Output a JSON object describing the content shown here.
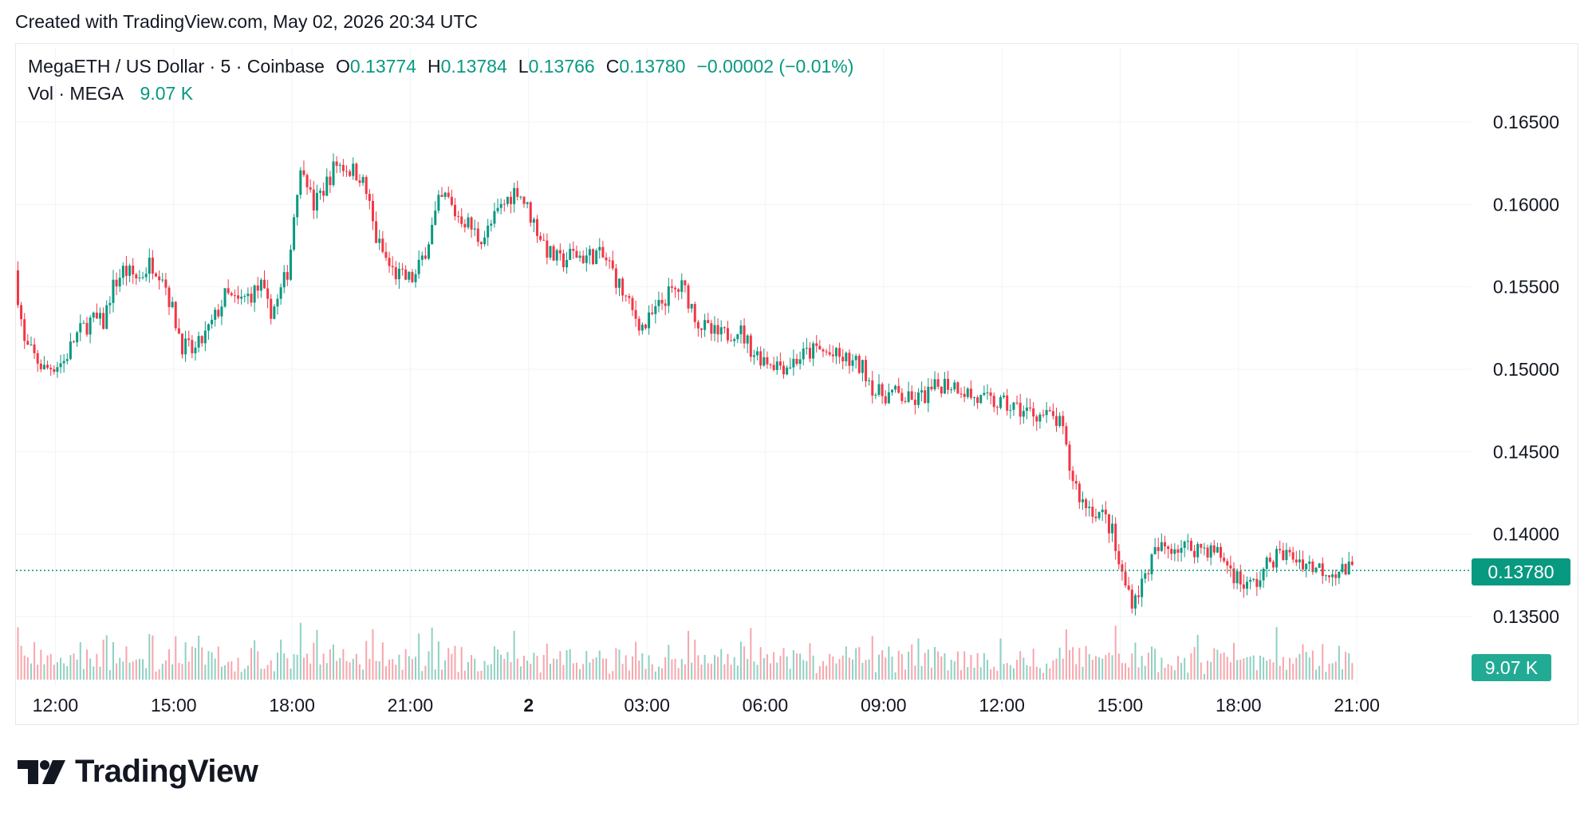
{
  "header": {
    "credit": "Created with TradingView.com, May 02, 2026 20:34 UTC"
  },
  "legend": {
    "symbol": "MegaETH / US Dollar · 5 · Coinbase",
    "open_label": "O",
    "open": "0.13774",
    "high_label": "H",
    "high": "0.13784",
    "low_label": "L",
    "low": "0.13766",
    "close_label": "C",
    "close": "0.13780",
    "change": "−0.00002 (−0.01%)",
    "vol_label": "Vol · MEGA",
    "vol_value": "9.07 K"
  },
  "price_axis_tag": "0.13780",
  "volume_axis_tag": "9.07 K",
  "brand": {
    "name": "TradingView",
    "logo": "tradingview-logo"
  },
  "colors": {
    "up": "#089981",
    "down": "#f23645",
    "grid": "#f0f3fa",
    "text": "#131722"
  },
  "chart_data": {
    "type": "candlestick",
    "interval": "5",
    "exchange": "Coinbase",
    "y_ticks": [
      "0.13500",
      "0.14000",
      "0.14500",
      "0.15000",
      "0.15500",
      "0.16000",
      "0.16500"
    ],
    "ylim": [
      0.1317,
      0.1678
    ],
    "x_ticks": [
      "12:00",
      "15:00",
      "18:00",
      "21:00",
      "2",
      "03:00",
      "06:00",
      "09:00",
      "12:00",
      "15:00",
      "18:00",
      "21:00"
    ],
    "x_tick_hours": [
      12,
      15,
      18,
      21,
      24,
      27,
      30,
      33,
      36,
      39,
      42,
      45
    ],
    "xlim_hours": [
      11.0,
      47.0
    ],
    "last_price": 0.1378,
    "price_path_hours": [
      11.05,
      11.3,
      11.8,
      12.3,
      12.6,
      13.0,
      13.3,
      13.5,
      13.8,
      14.2,
      14.5,
      14.8,
      15.0,
      15.3,
      15.6,
      16.0,
      16.4,
      16.7,
      17.0,
      17.3,
      17.5,
      17.7,
      18.0,
      18.2,
      18.4,
      18.6,
      18.9,
      19.2,
      19.5,
      19.8,
      20.0,
      20.2,
      20.4,
      20.6,
      20.9,
      21.2,
      21.5,
      21.8,
      22.0,
      22.2,
      22.5,
      22.8,
      23.0,
      23.3,
      23.6,
      23.8,
      24.0,
      24.3,
      24.6,
      24.9,
      25.2,
      25.5,
      25.8,
      26.1,
      26.4,
      26.7,
      27.0,
      27.3,
      27.6,
      28.0,
      28.4,
      28.7,
      29.0,
      29.4,
      29.8,
      30.2,
      30.6,
      31.0,
      31.4,
      31.8,
      32.2,
      32.6,
      32.9,
      33.0,
      33.4,
      33.8,
      34.2,
      34.6,
      35.0,
      35.4,
      35.8,
      36.2,
      36.6,
      37.0,
      37.4,
      37.6,
      37.8,
      38.1,
      38.4,
      38.7,
      38.9,
      39.0,
      39.2,
      39.4,
      39.6,
      39.8,
      40.0,
      40.4,
      40.8,
      41.2,
      41.6,
      42.0,
      42.3,
      42.6,
      42.9,
      43.2,
      43.6,
      44.0,
      44.4,
      44.7,
      44.95
    ],
    "price_path": [
      0.156,
      0.1515,
      0.15,
      0.1505,
      0.152,
      0.153,
      0.1528,
      0.1548,
      0.156,
      0.1555,
      0.1565,
      0.1558,
      0.154,
      0.1515,
      0.151,
      0.1525,
      0.1545,
      0.154,
      0.1545,
      0.155,
      0.1535,
      0.154,
      0.1562,
      0.161,
      0.1625,
      0.1598,
      0.161,
      0.1625,
      0.1622,
      0.1618,
      0.1605,
      0.158,
      0.157,
      0.156,
      0.1555,
      0.1555,
      0.1575,
      0.16,
      0.1605,
      0.1595,
      0.159,
      0.158,
      0.1582,
      0.1595,
      0.1605,
      0.161,
      0.16,
      0.1585,
      0.157,
      0.1565,
      0.157,
      0.1568,
      0.157,
      0.1565,
      0.155,
      0.1535,
      0.1525,
      0.1535,
      0.1545,
      0.155,
      0.1528,
      0.1522,
      0.152,
      0.1525,
      0.151,
      0.1505,
      0.1502,
      0.1508,
      0.1512,
      0.1508,
      0.1505,
      0.15,
      0.1485,
      0.1485,
      0.1485,
      0.148,
      0.1485,
      0.1492,
      0.149,
      0.1482,
      0.148,
      0.1478,
      0.1475,
      0.1473,
      0.147,
      0.1465,
      0.144,
      0.142,
      0.1415,
      0.141,
      0.14,
      0.1385,
      0.137,
      0.136,
      0.1368,
      0.138,
      0.139,
      0.1393,
      0.1392,
      0.1392,
      0.1388,
      0.1375,
      0.1368,
      0.1372,
      0.1385,
      0.1388,
      0.1385,
      0.138,
      0.1378,
      0.1378,
      0.1378
    ],
    "volume_axis_max": 9.5
  }
}
